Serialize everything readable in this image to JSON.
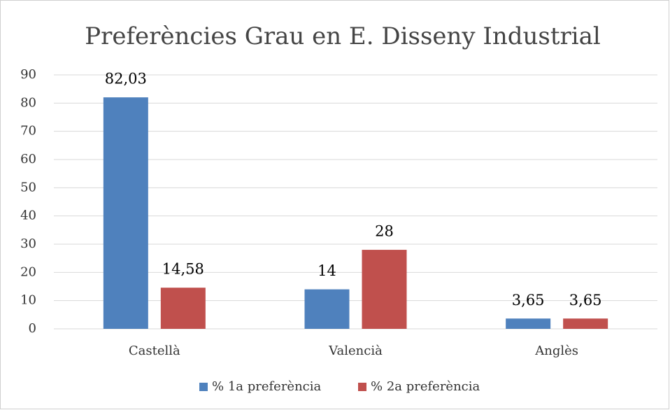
{
  "chart_data": {
    "type": "bar",
    "title": "Preferències Grau en E. Disseny Industrial",
    "categories": [
      "Castellà",
      "Valencià",
      "Anglès"
    ],
    "series": [
      {
        "name": "% 1a preferència",
        "color": "#4f81bd",
        "values": [
          82.03,
          14,
          3.65
        ],
        "value_labels": [
          "82,03",
          "14",
          "3,65"
        ]
      },
      {
        "name": "% 2a preferència",
        "color": "#c0504d",
        "values": [
          14.58,
          28,
          3.65
        ],
        "value_labels": [
          "14,58",
          "28",
          "3,65"
        ]
      }
    ],
    "ylim": [
      0,
      90
    ],
    "yticks": [
      0,
      10,
      20,
      30,
      40,
      50,
      60,
      70,
      80,
      90
    ],
    "grid": true,
    "legend": "bottom"
  }
}
